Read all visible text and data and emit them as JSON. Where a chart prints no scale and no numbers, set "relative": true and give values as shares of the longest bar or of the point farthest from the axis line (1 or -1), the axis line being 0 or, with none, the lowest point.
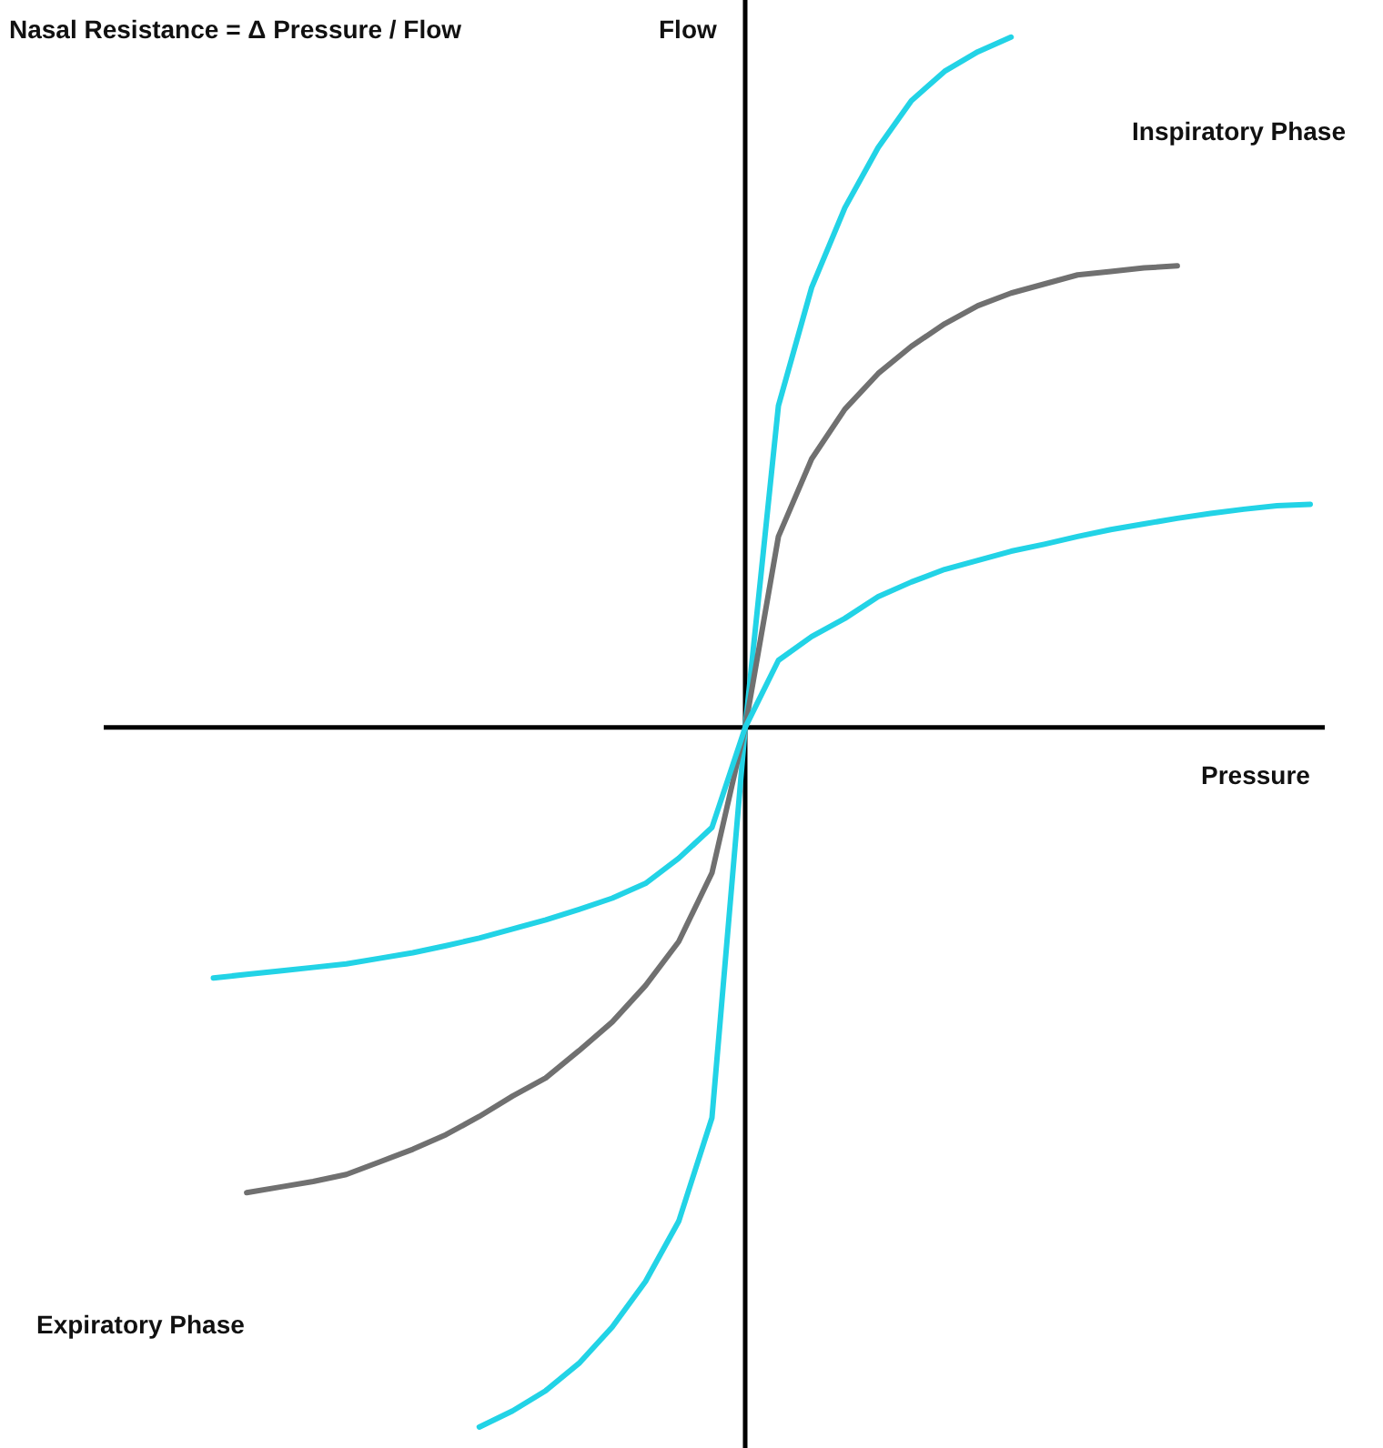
{
  "chart_data": {
    "type": "line",
    "relative": true,
    "title": "Nasal Resistance = Δ Pressure / Flow",
    "xlabel": "Pressure",
    "ylabel": "Flow",
    "annotations": [
      "Inspiratory Phase",
      "Expiratory Phase"
    ],
    "grid": false,
    "legend": false,
    "categories": [
      null,
      null,
      null,
      null,
      null,
      null,
      null,
      null,
      null,
      null,
      null,
      null,
      null,
      null,
      null,
      null,
      null,
      null,
      null,
      null,
      null,
      null,
      null,
      null,
      null,
      null,
      null,
      null,
      null,
      null,
      null,
      null,
      null,
      null,
      null
    ],
    "series": [
      {
        "color": "#22d3e6",
        "values": [
          null,
          null,
          null,
          null,
          null,
          null,
          null,
          null,
          null,
          -1.0,
          -0.977,
          -0.948,
          -0.909,
          -0.857,
          -0.792,
          -0.706,
          -0.558,
          0,
          0.46,
          0.629,
          0.743,
          0.829,
          0.896,
          0.938,
          0.966,
          0.987,
          null,
          null,
          null,
          null,
          null,
          null,
          null,
          null,
          null
        ]
      },
      {
        "color": "#707070",
        "values": [
          null,
          null,
          -0.665,
          -0.657,
          -0.649,
          -0.639,
          -0.621,
          -0.603,
          -0.582,
          -0.556,
          -0.527,
          -0.501,
          -0.462,
          -0.421,
          -0.369,
          -0.306,
          -0.208,
          0,
          0.273,
          0.384,
          0.455,
          0.506,
          0.545,
          0.577,
          0.603,
          0.621,
          0.634,
          0.647,
          0.652,
          0.657,
          0.66,
          null,
          null,
          null,
          null
        ]
      },
      {
        "color": "#22d3e6",
        "values": [
          null,
          -0.358,
          -0.353,
          -0.348,
          -0.343,
          -0.338,
          -0.33,
          -0.322,
          -0.312,
          -0.301,
          -0.288,
          -0.275,
          -0.26,
          -0.244,
          -0.223,
          -0.187,
          -0.143,
          0,
          0.096,
          0.13,
          0.156,
          0.187,
          0.208,
          0.226,
          0.239,
          0.252,
          0.262,
          0.273,
          0.283,
          0.291,
          0.299,
          0.306,
          0.312,
          0.317,
          0.319
        ]
      }
    ]
  }
}
